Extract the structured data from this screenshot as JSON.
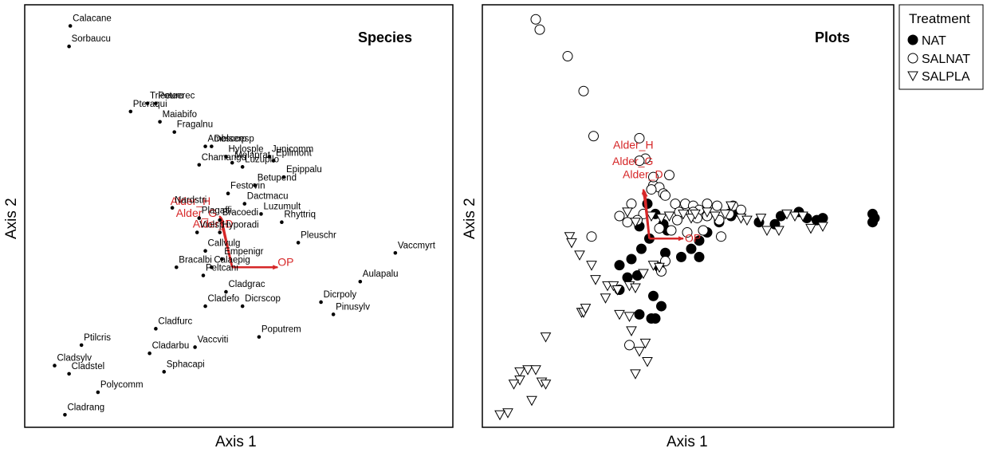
{
  "chart_data": [
    {
      "type": "scatter",
      "panel": "Species",
      "xlabel": "Axis 1",
      "ylabel": "Axis 2",
      "title": "Species",
      "xlim": [
        0,
        100
      ],
      "ylim": [
        0,
        100
      ],
      "points": [
        {
          "name": "Calacane",
          "x": 9.3,
          "y": 96.4
        },
        {
          "name": "Sorbaucu",
          "x": 9.0,
          "y": 91.4
        },
        {
          "name": "Trieeuro",
          "x": 28.0,
          "y": 77.5
        },
        {
          "name": "Poteerec",
          "x": 30.0,
          "y": 77.5
        },
        {
          "name": "Pteraqui",
          "x": 23.9,
          "y": 75.5
        },
        {
          "name": "Maiabifo",
          "x": 31.0,
          "y": 73.0
        },
        {
          "name": "Fragalnu",
          "x": 34.5,
          "y": 70.5
        },
        {
          "name": "Amblserp",
          "x": 42.0,
          "y": 67.0
        },
        {
          "name": "Desccesp",
          "x": 43.5,
          "y": 67.0
        },
        {
          "name": "Hylosple",
          "x": 47.0,
          "y": 64.5
        },
        {
          "name": "Junicomm",
          "x": 57.5,
          "y": 64.5
        },
        {
          "name": "Epilmont",
          "x": 58.5,
          "y": 63.5
        },
        {
          "name": "Chamangu",
          "x": 40.5,
          "y": 62.5
        },
        {
          "name": "Melaprat",
          "x": 48.5,
          "y": 63.0
        },
        {
          "name": "Luzupilo",
          "x": 51.0,
          "y": 62.0
        },
        {
          "name": "Epippalu",
          "x": 61.0,
          "y": 59.5
        },
        {
          "name": "Betupend",
          "x": 54.0,
          "y": 57.5
        },
        {
          "name": "Festovin",
          "x": 47.5,
          "y": 55.5
        },
        {
          "name": "Dactmacu",
          "x": 51.5,
          "y": 53.0
        },
        {
          "name": "Nardstri",
          "x": 34.0,
          "y": 52.0
        },
        {
          "name": "Luzumult",
          "x": 55.5,
          "y": 50.5
        },
        {
          "name": "Plagaffi",
          "x": 40.5,
          "y": 49.5
        },
        {
          "name": "Bracoedi",
          "x": 45.5,
          "y": 49.0
        },
        {
          "name": "Rhyttriq",
          "x": 60.5,
          "y": 48.5
        },
        {
          "name": "Violsp",
          "x": 40.0,
          "y": 46.0
        },
        {
          "name": "Hyporadi",
          "x": 45.5,
          "y": 46.0
        },
        {
          "name": "Pleuschr",
          "x": 64.5,
          "y": 43.5
        },
        {
          "name": "Vaccmyrt",
          "x": 88.0,
          "y": 41.0
        },
        {
          "name": "Callvulg",
          "x": 42.0,
          "y": 41.5
        },
        {
          "name": "Empenigr",
          "x": 46.0,
          "y": 39.5
        },
        {
          "name": "Bracalbi",
          "x": 35.0,
          "y": 37.5
        },
        {
          "name": "Calaepig",
          "x": 43.5,
          "y": 37.5
        },
        {
          "name": "Peltcani",
          "x": 41.5,
          "y": 35.5
        },
        {
          "name": "Aulapalu",
          "x": 79.5,
          "y": 34.0
        },
        {
          "name": "Cladgrac",
          "x": 47.0,
          "y": 31.5
        },
        {
          "name": "Cladefo",
          "x": 42.0,
          "y": 28.0
        },
        {
          "name": "Dicrscop",
          "x": 51.0,
          "y": 28.0
        },
        {
          "name": "Dicrpoly",
          "x": 70.0,
          "y": 29.0
        },
        {
          "name": "Pinusylv",
          "x": 73.0,
          "y": 26.0
        },
        {
          "name": "Cladfurc",
          "x": 30.0,
          "y": 22.5
        },
        {
          "name": "Poputrem",
          "x": 55.0,
          "y": 20.5
        },
        {
          "name": "Ptilcris",
          "x": 12.0,
          "y": 18.5
        },
        {
          "name": "Cladarbu",
          "x": 28.5,
          "y": 16.5
        },
        {
          "name": "Vaccviti",
          "x": 39.5,
          "y": 18.0
        },
        {
          "name": "Cladsylv",
          "x": 5.5,
          "y": 13.5
        },
        {
          "name": "Cladstel",
          "x": 9.0,
          "y": 11.5
        },
        {
          "name": "Sphacapi",
          "x": 32.0,
          "y": 12.0
        },
        {
          "name": "Polycomm",
          "x": 16.0,
          "y": 7.0
        },
        {
          "name": "Cladrang",
          "x": 8.0,
          "y": 1.5
        }
      ],
      "vectors": [
        {
          "name": "Alder_H",
          "x": 45.5,
          "y": 50.0
        },
        {
          "name": "Alder_G",
          "x": 45.7,
          "y": 49.8
        },
        {
          "name": "Alder_D",
          "x": 45.9,
          "y": 49.5
        },
        {
          "name": "OP",
          "x": 59.5,
          "y": 37.5
        }
      ],
      "origin": {
        "x": 48.5,
        "y": 37.5
      }
    },
    {
      "type": "scatter",
      "panel": "Plots",
      "xlabel": "Axis 1",
      "ylabel": "Axis 2",
      "title": "Plots",
      "xlim": [
        0,
        100
      ],
      "ylim": [
        0,
        100
      ],
      "legend": {
        "title": "Treatment",
        "position": "outside-right",
        "entries": [
          {
            "name": "NAT",
            "marker": "filled-circle"
          },
          {
            "name": "SALNAT",
            "marker": "open-circle"
          },
          {
            "name": "SALPLA",
            "marker": "open-triangle-down"
          }
        ]
      },
      "series": [
        {
          "name": "NAT",
          "marker": "filled-circle",
          "points": [
            [
              40.0,
              53.0
            ],
            [
              42.0,
              50.5
            ],
            [
              44.0,
              48.0
            ],
            [
              38.0,
              47.5
            ],
            [
              40.5,
              44.5
            ],
            [
              38.5,
              42.0
            ],
            [
              36.0,
              39.5
            ],
            [
              33.0,
              38.0
            ],
            [
              37.5,
              35.5
            ],
            [
              33.0,
              32.0
            ],
            [
              43.0,
              37.5
            ],
            [
              48.5,
              40.0
            ],
            [
              51.0,
              42.0
            ],
            [
              53.0,
              44.0
            ],
            [
              55.0,
              46.0
            ],
            [
              58.0,
              48.5
            ],
            [
              61.0,
              50.0
            ],
            [
              63.0,
              51.0
            ],
            [
              68.0,
              48.5
            ],
            [
              72.0,
              48.0
            ],
            [
              73.5,
              50.0
            ],
            [
              78.0,
              51.0
            ],
            [
              80.0,
              49.5
            ],
            [
              82.5,
              49.0
            ],
            [
              84.0,
              49.5
            ],
            [
              96.5,
              48.5
            ],
            [
              97.0,
              49.5
            ],
            [
              96.5,
              50.5
            ],
            [
              45.0,
              46.5
            ],
            [
              41.5,
              30.5
            ],
            [
              43.5,
              28.0
            ],
            [
              42.0,
              25.0
            ],
            [
              41.0,
              25.0
            ],
            [
              53.0,
              40.0
            ],
            [
              44.5,
              41.0
            ],
            [
              35.0,
              35.0
            ],
            [
              38.0,
              26.0
            ]
          ]
        },
        {
          "name": "SALNAT",
          "marker": "open-circle",
          "points": [
            [
              12.0,
              98.0
            ],
            [
              13.0,
              95.5
            ],
            [
              20.0,
              89.0
            ],
            [
              24.0,
              80.5
            ],
            [
              26.5,
              69.5
            ],
            [
              38.0,
              69.0
            ],
            [
              39.5,
              64.0
            ],
            [
              45.5,
              60.0
            ],
            [
              41.5,
              57.5
            ],
            [
              43.0,
              57.0
            ],
            [
              44.0,
              55.5
            ],
            [
              44.5,
              55.0
            ],
            [
              41.0,
              56.5
            ],
            [
              47.0,
              53.0
            ],
            [
              49.5,
              53.0
            ],
            [
              51.5,
              52.5
            ],
            [
              53.0,
              51.5
            ],
            [
              55.0,
              53.0
            ],
            [
              57.5,
              52.5
            ],
            [
              61.5,
              52.5
            ],
            [
              63.5,
              51.5
            ],
            [
              48.0,
              51.0
            ],
            [
              51.5,
              51.0
            ],
            [
              39.0,
              50.5
            ],
            [
              47.5,
              49.0
            ],
            [
              52.5,
              49.5
            ],
            [
              55.0,
              50.0
            ],
            [
              58.0,
              49.0
            ],
            [
              60.5,
              50.5
            ],
            [
              37.5,
              49.0
            ],
            [
              43.0,
              47.0
            ],
            [
              46.0,
              46.5
            ],
            [
              50.0,
              46.0
            ],
            [
              54.0,
              46.5
            ],
            [
              58.5,
              45.0
            ],
            [
              26.0,
              45.0
            ],
            [
              44.5,
              39.0
            ],
            [
              43.5,
              36.5
            ],
            [
              35.0,
              48.5
            ],
            [
              33.0,
              50.0
            ],
            [
              41.5,
              59.5
            ],
            [
              36.0,
              53.0
            ],
            [
              35.5,
              18.5
            ],
            [
              38.0,
              63.5
            ]
          ]
        },
        {
          "name": "SALPLA",
          "marker": "open-triangle-down",
          "points": [
            [
              35.0,
              51.0
            ],
            [
              37.0,
              48.5
            ],
            [
              41.0,
              50.0
            ],
            [
              43.5,
              49.5
            ],
            [
              45.5,
              50.0
            ],
            [
              49.0,
              50.5
            ],
            [
              51.0,
              49.5
            ],
            [
              52.0,
              50.5
            ],
            [
              55.0,
              51.0
            ],
            [
              57.0,
              50.0
            ],
            [
              59.5,
              50.5
            ],
            [
              61.0,
              52.5
            ],
            [
              63.5,
              49.5
            ],
            [
              65.0,
              49.0
            ],
            [
              68.5,
              49.5
            ],
            [
              70.0,
              46.5
            ],
            [
              73.0,
              46.5
            ],
            [
              75.0,
              50.5
            ],
            [
              77.0,
              50.0
            ],
            [
              79.0,
              50.0
            ],
            [
              81.0,
              47.0
            ],
            [
              84.0,
              47.5
            ],
            [
              26.0,
              38.0
            ],
            [
              30.0,
              33.0
            ],
            [
              31.5,
              33.0
            ],
            [
              32.5,
              32.0
            ],
            [
              35.5,
              33.0
            ],
            [
              37.0,
              32.5
            ],
            [
              39.0,
              36.0
            ],
            [
              41.5,
              38.0
            ],
            [
              43.0,
              37.5
            ],
            [
              20.5,
              45.0
            ],
            [
              21.0,
              43.5
            ],
            [
              23.0,
              40.5
            ],
            [
              27.0,
              34.5
            ],
            [
              23.5,
              26.5
            ],
            [
              24.0,
              26.5
            ],
            [
              24.5,
              27.5
            ],
            [
              35.5,
              25.5
            ],
            [
              29.5,
              30.0
            ],
            [
              33.0,
              26.0
            ],
            [
              36.0,
              22.0
            ],
            [
              39.5,
              19.0
            ],
            [
              38.0,
              17.0
            ],
            [
              14.5,
              20.5
            ],
            [
              10.0,
              12.5
            ],
            [
              8.0,
              12.0
            ],
            [
              12.0,
              12.5
            ],
            [
              8.0,
              10.0
            ],
            [
              6.5,
              9.0
            ],
            [
              13.5,
              9.5
            ],
            [
              14.5,
              9.0
            ],
            [
              11.0,
              5.0
            ],
            [
              5.0,
              2.0
            ],
            [
              3.0,
              1.5
            ],
            [
              40.0,
              14.5
            ],
            [
              37.0,
              11.5
            ]
          ]
        }
      ],
      "vectors": [
        {
          "name": "Alder_H",
          "x": 39.0,
          "y": 56.5
        },
        {
          "name": "Alder_G",
          "x": 39.2,
          "y": 56.2
        },
        {
          "name": "Alder_D",
          "x": 39.4,
          "y": 55.9
        },
        {
          "name": "OP",
          "x": 49.0,
          "y": 44.5
        }
      ],
      "origin": {
        "x": 40.5,
        "y": 44.5
      }
    }
  ],
  "colors": {
    "vector": "#d62728",
    "marker": "#000000"
  }
}
